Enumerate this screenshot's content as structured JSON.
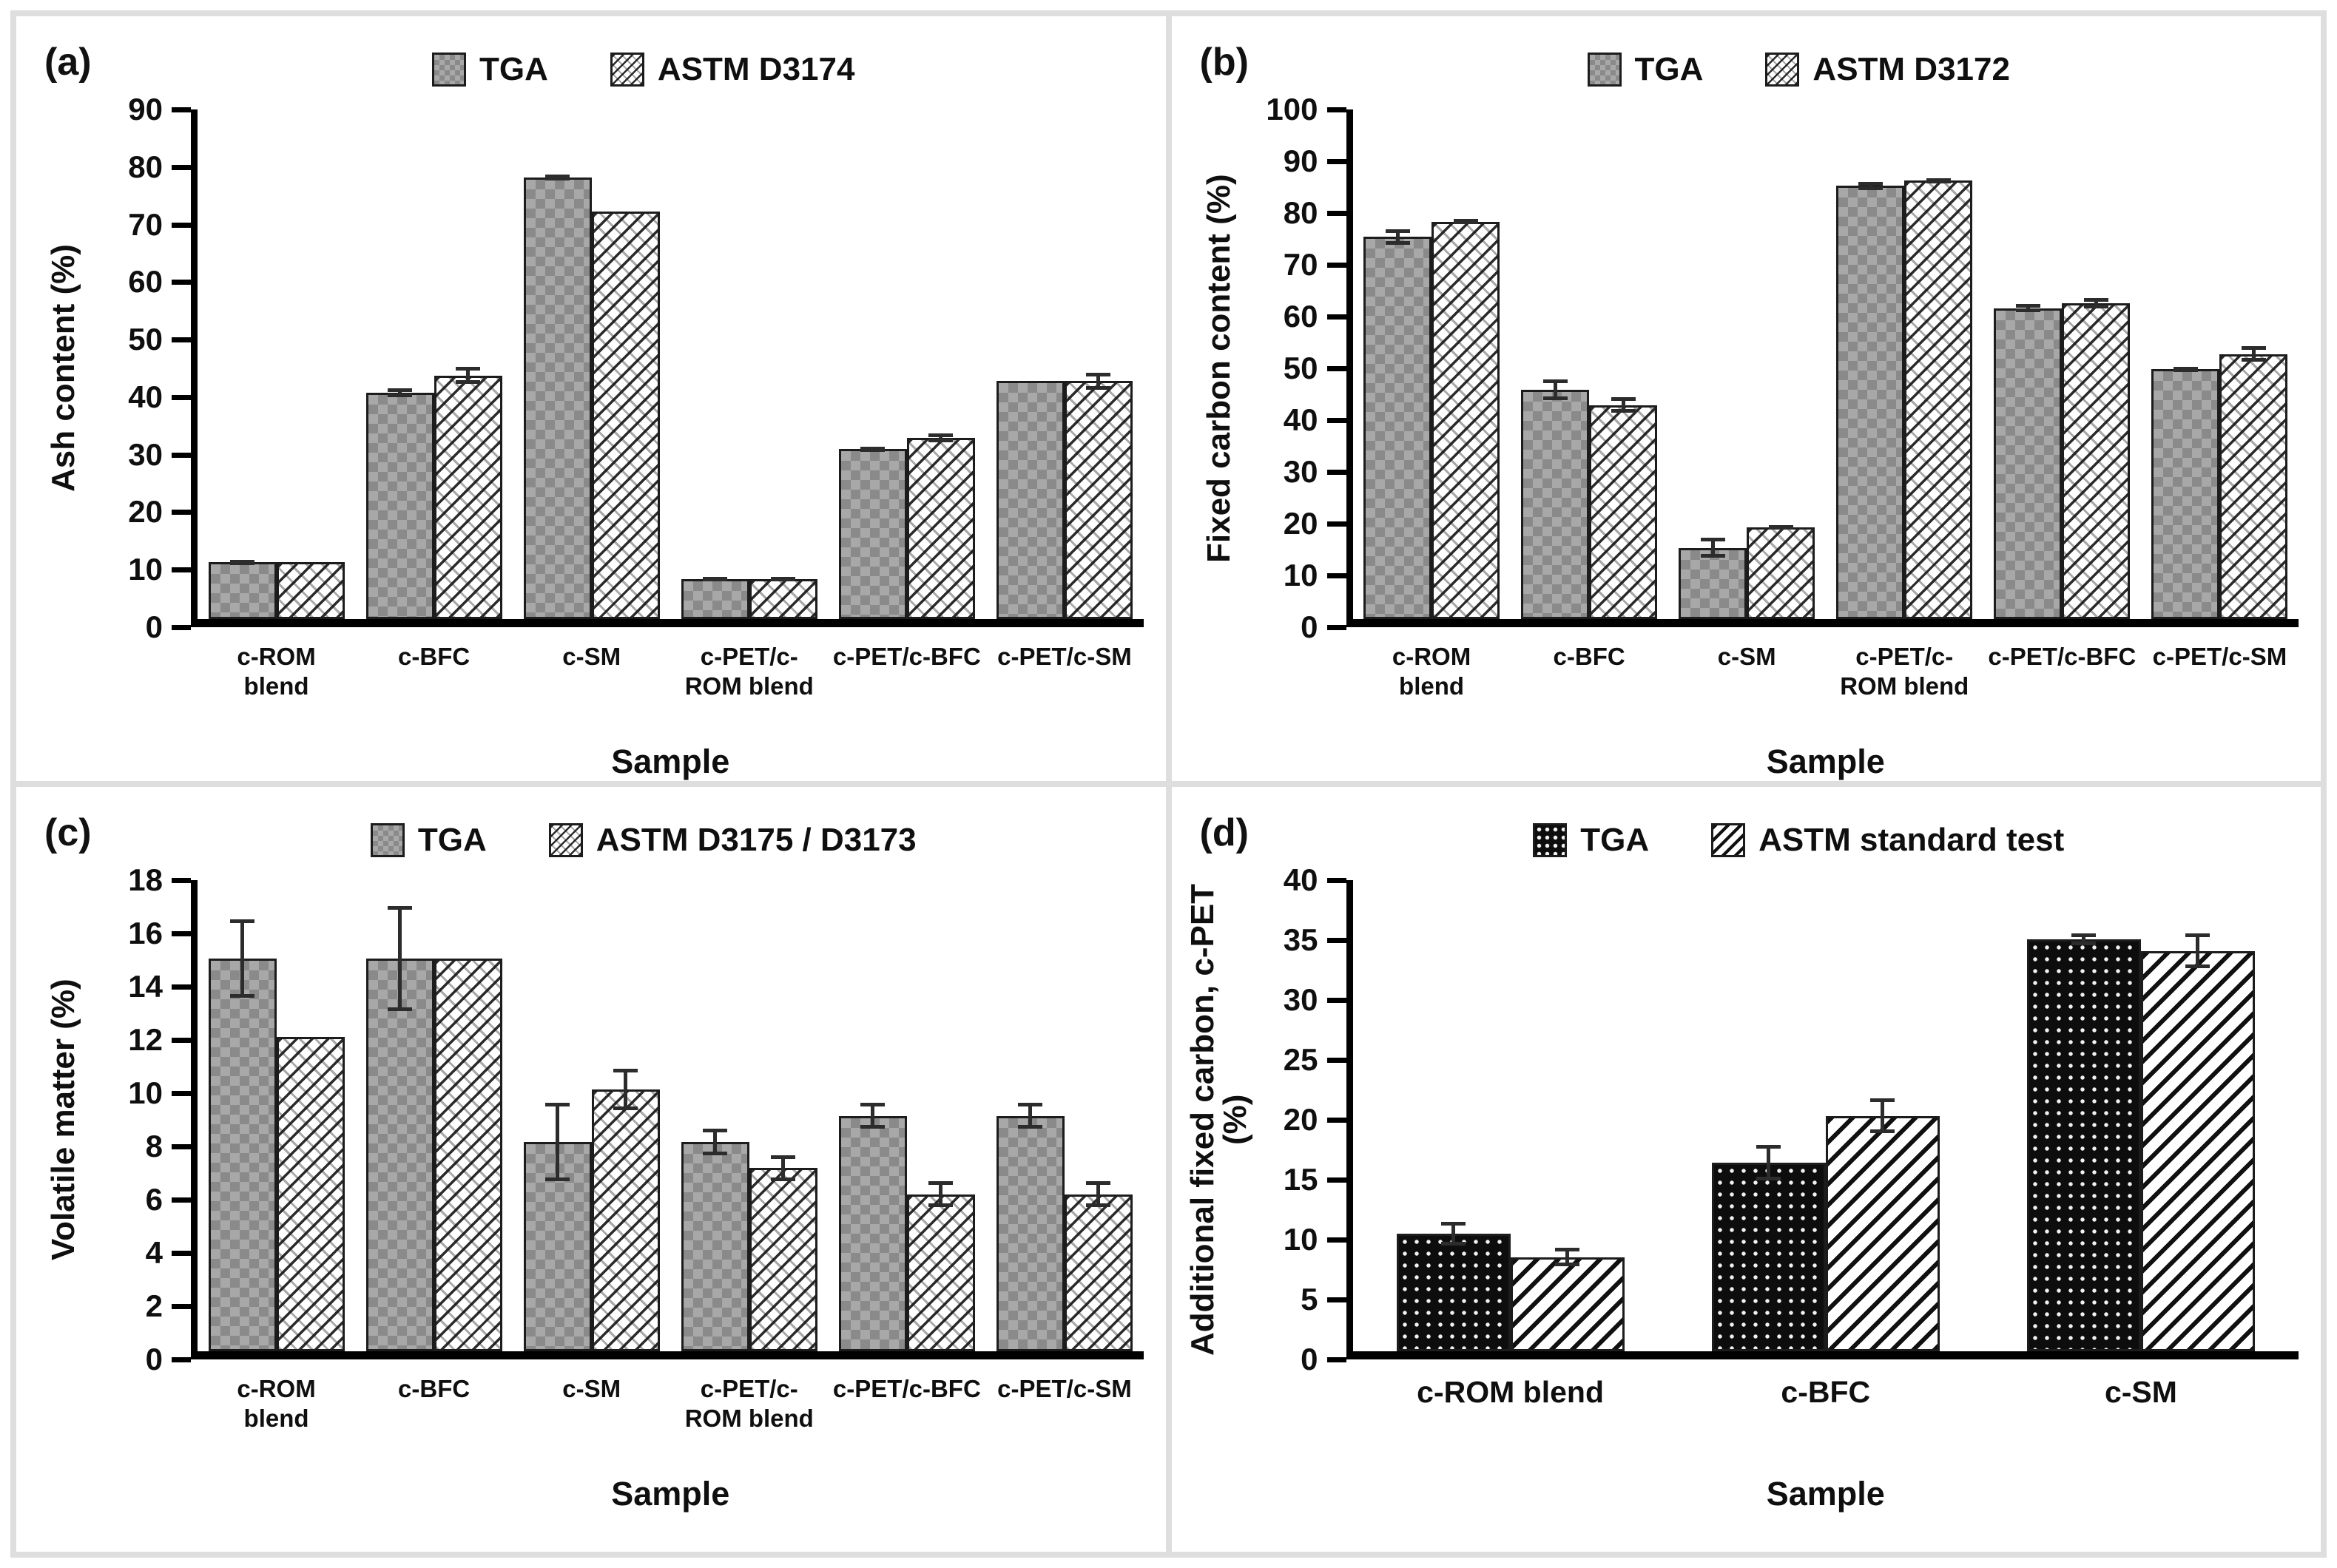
{
  "figure_description": "Four-panel bar chart comparison of TGA versus ASTM standard test results",
  "colors": {
    "axis": "#000000",
    "text": "#0f0f0f",
    "panel_divider": "#dedede",
    "tga_gray": "#a2a2a2",
    "tga_gray_check": "#8a8a8a",
    "black_fill": "#0d0d0d",
    "white_fill": "#ffffff"
  },
  "chart_data": [
    {
      "panel": "(a)",
      "type": "bar",
      "ylabel": "Ash content (%)",
      "xlabel": "Sample",
      "ylim": [
        0,
        90
      ],
      "ytick_step": 10,
      "grid": false,
      "legend_position": "top-center",
      "legend": [
        "TGA",
        "ASTM D3174"
      ],
      "categories": [
        "c-ROM blend",
        "c-BFC",
        "c-SM",
        "c-PET/c-ROM blend",
        "c-PET/c-BFC",
        "c-PET/c-SM"
      ],
      "series": [
        {
          "name": "TGA",
          "pattern": "checker",
          "values": [
            10,
            40,
            78,
            7,
            30,
            42
          ],
          "errors": [
            0.5,
            0.8,
            0.5,
            0.4,
            0.5,
            0
          ]
        },
        {
          "name": "ASTM D3174",
          "pattern": "weave",
          "values": [
            10,
            43,
            72,
            7,
            32,
            42
          ],
          "errors": [
            0,
            1.5,
            0,
            0.4,
            0.8,
            1.5
          ]
        }
      ]
    },
    {
      "panel": "(b)",
      "type": "bar",
      "ylabel": "Fixed carbon content (%)",
      "xlabel": "Sample",
      "ylim": [
        0,
        100
      ],
      "ytick_step": 10,
      "grid": false,
      "legend_position": "top-center",
      "legend": [
        "TGA",
        "ASTM D3172"
      ],
      "categories": [
        "c-ROM blend",
        "c-BFC",
        "c-SM",
        "c-PET/c-ROM blend",
        "c-PET/c-BFC",
        "c-PET/c-SM"
      ],
      "series": [
        {
          "name": "TGA",
          "pattern": "checker",
          "values": [
            75,
            45,
            14,
            85,
            61,
            49
          ],
          "errors": [
            1.5,
            2,
            2,
            0.8,
            0.8,
            0.5
          ]
        },
        {
          "name": "ASTM D3172",
          "pattern": "weave",
          "values": [
            78,
            42,
            18,
            86,
            62,
            52
          ],
          "errors": [
            0.5,
            1.5,
            0.5,
            0.5,
            1,
            1.5
          ]
        }
      ]
    },
    {
      "panel": "(c)",
      "type": "bar",
      "ylabel": "Volatile matter (%)",
      "xlabel": "Sample",
      "ylim": [
        0,
        18
      ],
      "ytick_step": 2,
      "grid": false,
      "legend_position": "top-center",
      "legend": [
        "TGA",
        "ASTM D3175 / D3173"
      ],
      "categories": [
        "c-ROM blend",
        "c-BFC",
        "c-SM",
        "c-PET/c-ROM blend",
        "c-PET/c-BFC",
        "c-PET/c-SM"
      ],
      "series": [
        {
          "name": "TGA",
          "pattern": "checker",
          "values": [
            15,
            15,
            8,
            8,
            9,
            9
          ],
          "errors": [
            1.5,
            2,
            1.5,
            0.5,
            0.5,
            0.5
          ]
        },
        {
          "name": "ASTM D3175 / D3173",
          "pattern": "weave",
          "values": [
            12,
            15,
            10,
            7,
            6,
            6
          ],
          "errors": [
            0,
            0,
            0.8,
            0.5,
            0.5,
            0.5
          ]
        }
      ]
    },
    {
      "panel": "(d)",
      "type": "bar",
      "ylabel": "Additional fixed carbon, c-PET (%)",
      "xlabel": "Sample",
      "ylim": [
        0,
        40
      ],
      "ytick_step": 5,
      "grid": false,
      "legend_position": "top-center",
      "legend": [
        "TGA",
        "ASTM standard test"
      ],
      "categories": [
        "c-ROM blend",
        "c-BFC",
        "c-SM"
      ],
      "series": [
        {
          "name": "TGA",
          "pattern": "dots",
          "values": [
            10,
            16,
            35
          ],
          "errors": [
            1,
            1.5,
            0.5
          ]
        },
        {
          "name": "ASTM standard test",
          "pattern": "stripes",
          "values": [
            8,
            20,
            34
          ],
          "errors": [
            0.8,
            1.5,
            1.5
          ]
        }
      ]
    }
  ]
}
